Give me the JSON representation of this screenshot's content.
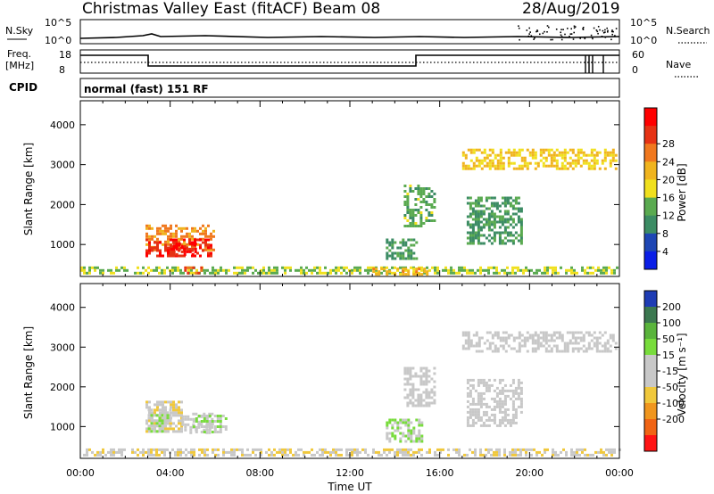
{
  "header": {
    "title": "Christmas Valley East (fitACF)",
    "beam": "Beam 08",
    "date": "28/Aug/2019"
  },
  "top_panels": {
    "nsky_label": "N.Sky",
    "nsky_ticks": [
      "10^5",
      "10^0"
    ],
    "nsearch_label": "N.Search",
    "nsearch_ticks": [
      "10^5",
      "10^0"
    ],
    "freq_label": "Freq.",
    "freq_unit": "[MHz]",
    "freq_ticks": [
      "18",
      "8"
    ],
    "nave_label": "Nave",
    "nave_ticks": [
      "60",
      "0"
    ],
    "cpid_label": "CPID",
    "cpid_value": "normal (fast) 151 RF"
  },
  "colors": {
    "power_scale": [
      "#0a1ee6",
      "#1e46b4",
      "#3c8c64",
      "#5aaa50",
      "#f0e01e",
      "#f0b41e",
      "#f0781e",
      "#e63214",
      "#ff0000"
    ],
    "velocity_scale": [
      "#1e3cb4",
      "#3c7850",
      "#5ab43c",
      "#78dc3c",
      "#c8c8c8",
      "#c8c8c8",
      "#f0c83c",
      "#f0961e",
      "#f06414",
      "#ff1414"
    ]
  },
  "chart_data": [
    {
      "type": "heatmap",
      "name": "power",
      "ylabel": "Slant Range [km]",
      "yticks": [
        "1000",
        "2000",
        "3000",
        "4000"
      ],
      "ylim": [
        200,
        4600
      ],
      "colorbar_label": "Power [dB]",
      "colorbar_ticks": [
        "4",
        "8",
        "12",
        "16",
        "20",
        "24",
        "28"
      ],
      "clim": [
        0,
        32
      ],
      "regions": [
        {
          "t0": 2.9,
          "t1": 5.9,
          "r0": 850,
          "r1": 1500,
          "v": 22
        },
        {
          "t0": 2.9,
          "t1": 5.8,
          "r0": 700,
          "r1": 1150,
          "v": 28
        },
        {
          "t0": 4.0,
          "t1": 5.1,
          "r0": 750,
          "r1": 1050,
          "v": 30
        },
        {
          "t0": 0.0,
          "t1": 24.0,
          "r0": 250,
          "r1": 450,
          "v": 14
        },
        {
          "t0": 4.5,
          "t1": 5.4,
          "r0": 300,
          "r1": 450,
          "v": 26
        },
        {
          "t0": 13.0,
          "t1": 15.5,
          "r0": 280,
          "r1": 420,
          "v": 20
        },
        {
          "t0": 14.4,
          "t1": 15.8,
          "r0": 1450,
          "r1": 2500,
          "v": 12
        },
        {
          "t0": 13.6,
          "t1": 15.0,
          "r0": 650,
          "r1": 1150,
          "v": 10
        },
        {
          "t0": 17.0,
          "t1": 23.8,
          "r0": 2900,
          "r1": 3400,
          "v": 18
        },
        {
          "t0": 17.2,
          "t1": 19.6,
          "r0": 1000,
          "r1": 2200,
          "v": 10
        }
      ]
    },
    {
      "type": "heatmap",
      "name": "velocity",
      "ylabel": "Slant Range [km]",
      "yticks": [
        "1000",
        "2000",
        "3000",
        "4000"
      ],
      "ylim": [
        200,
        4600
      ],
      "xlabel": "Time UT",
      "xticks": [
        "00:00",
        "04:00",
        "08:00",
        "12:00",
        "16:00",
        "20:00",
        "00:00"
      ],
      "xlim": [
        0,
        24
      ],
      "colorbar_label": "Velocity [m s⁻¹]",
      "colorbar_ticks": [
        "200",
        "100",
        "50",
        "15",
        "-15",
        "-50",
        "-100",
        "-200"
      ],
      "clim": [
        -250,
        250
      ],
      "regions": [
        {
          "t0": 2.9,
          "t1": 4.5,
          "r0": 850,
          "r1": 1650,
          "v": -30
        },
        {
          "t0": 3.0,
          "t1": 4.0,
          "r0": 900,
          "r1": 1450,
          "v": 40
        },
        {
          "t0": 4.5,
          "t1": 5.9,
          "r0": 850,
          "r1": 1350,
          "v": 0
        },
        {
          "t0": 5.0,
          "t1": 6.5,
          "r0": 850,
          "r1": 1300,
          "v": 35
        },
        {
          "t0": 0.0,
          "t1": 24.0,
          "r0": 250,
          "r1": 450,
          "v": -40
        },
        {
          "t0": 13.6,
          "t1": 15.2,
          "r0": 650,
          "r1": 1200,
          "v": 45
        },
        {
          "t0": 14.4,
          "t1": 15.8,
          "r0": 1500,
          "r1": 2500,
          "v": 5
        },
        {
          "t0": 17.0,
          "t1": 23.8,
          "r0": 2900,
          "r1": 3400,
          "v": 0
        },
        {
          "t0": 17.2,
          "t1": 19.6,
          "r0": 1000,
          "r1": 2200,
          "v": 0
        }
      ]
    }
  ]
}
